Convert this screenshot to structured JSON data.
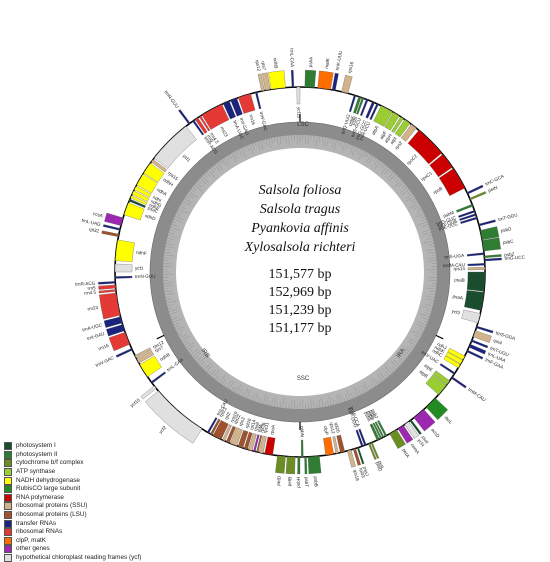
{
  "species": [
    "Salsola foliosa",
    "Salsola tragus",
    "Pyankovia affinis",
    "Xylosalsola richteri"
  ],
  "genome_sizes": [
    "151,577 bp",
    "152,969 bp",
    "151,239 bp",
    "151,177 bp"
  ],
  "regions": [
    "LSC",
    "IRA",
    "SSC",
    "IRB"
  ],
  "legend": [
    {
      "label": "photosystem I",
      "color": "#1a4d2e"
    },
    {
      "label": "photosystem II",
      "color": "#2e7d32"
    },
    {
      "label": "cytochrome b/f complex",
      "color": "#6b8e23"
    },
    {
      "label": "ATP synthase",
      "color": "#9acd32"
    },
    {
      "label": "NADH dehydrogenase",
      "color": "#ffff00"
    },
    {
      "label": "RubisCO large subunit",
      "color": "#228b22"
    },
    {
      "label": "RNA polymerase",
      "color": "#cc0000"
    },
    {
      "label": "ribosomal proteins (SSU)",
      "color": "#d2b48c"
    },
    {
      "label": "ribosomal proteins (LSU)",
      "color": "#a0522d"
    },
    {
      "label": "transfer RNAs",
      "color": "#1a237e"
    },
    {
      "label": "ribosomal RNAs",
      "color": "#e53935"
    },
    {
      "label": "clpP, matK",
      "color": "#ff6d00"
    },
    {
      "label": "other genes",
      "color": "#9c27b0"
    },
    {
      "label": "hypothetical chloroplast reading frames (ycf)",
      "color": "#e0e0e0"
    }
  ],
  "genes": [
    {
      "name": "psbA",
      "start": 1.5,
      "end": 4.5,
      "color": "#2e7d32",
      "side": "out"
    },
    {
      "name": "matK",
      "start": 5.5,
      "end": 9.5,
      "color": "#ff6d00",
      "side": "out"
    },
    {
      "name": "trnK-UUU",
      "start": 10,
      "end": 11,
      "color": "#1a237e",
      "side": "out"
    },
    {
      "name": "rps16",
      "start": 13,
      "end": 15,
      "color": "#d2b48c",
      "side": "out"
    },
    {
      "name": "trnQ-UUG",
      "start": 17,
      "end": 17.6,
      "color": "#1a237e",
      "side": "in"
    },
    {
      "name": "psbK",
      "start": 18.5,
      "end": 19.3,
      "color": "#2e7d32",
      "side": "in"
    },
    {
      "name": "psbI",
      "start": 19.6,
      "end": 20.2,
      "color": "#2e7d32",
      "side": "in"
    },
    {
      "name": "trnS-GCU",
      "start": 21,
      "end": 21.6,
      "color": "#1a237e",
      "side": "in"
    },
    {
      "name": "trnG-GCC",
      "start": 23,
      "end": 23.8,
      "color": "#1a237e",
      "side": "in"
    },
    {
      "name": "trnR-UCU",
      "start": 24.5,
      "end": 25.1,
      "color": "#1a237e",
      "side": "in"
    },
    {
      "name": "atpA",
      "start": 26,
      "end": 30,
      "color": "#9acd32",
      "side": "in"
    },
    {
      "name": "atpF",
      "start": 30.3,
      "end": 32.5,
      "color": "#9acd32",
      "side": "in"
    },
    {
      "name": "atpH",
      "start": 33,
      "end": 34,
      "color": "#9acd32",
      "side": "in"
    },
    {
      "name": "atpI",
      "start": 34.5,
      "end": 36.5,
      "color": "#9acd32",
      "side": "in"
    },
    {
      "name": "rps2",
      "start": 37,
      "end": 39,
      "color": "#d2b48c",
      "side": "in"
    },
    {
      "name": "rpoC2",
      "start": 40,
      "end": 50,
      "color": "#cc0000",
      "side": "in"
    },
    {
      "name": "rpoC1",
      "start": 50.5,
      "end": 55.5,
      "color": "#cc0000",
      "side": "in"
    },
    {
      "name": "rpoB",
      "start": 56,
      "end": 63,
      "color": "#cc0000",
      "side": "in"
    },
    {
      "name": "trnC-GCA",
      "start": 64.5,
      "end": 65.1,
      "color": "#1a237e",
      "side": "out"
    },
    {
      "name": "petN",
      "start": 66.5,
      "end": 67.1,
      "color": "#6b8e23",
      "side": "out"
    },
    {
      "name": "psbM",
      "start": 68.5,
      "end": 69.2,
      "color": "#2e7d32",
      "side": "in"
    },
    {
      "name": "trnD-GUC",
      "start": 70.5,
      "end": 71.1,
      "color": "#1a237e",
      "side": "in"
    },
    {
      "name": "trnY-GUA",
      "start": 71.6,
      "end": 72.2,
      "color": "#1a237e",
      "side": "in"
    },
    {
      "name": "trnE-UUC",
      "start": 72.7,
      "end": 73.3,
      "color": "#1a237e",
      "side": "in"
    },
    {
      "name": "trnT-GGU",
      "start": 75,
      "end": 75.6,
      "color": "#1a237e",
      "side": "out"
    },
    {
      "name": "psbD",
      "start": 77,
      "end": 80,
      "color": "#2e7d32",
      "side": "out"
    },
    {
      "name": "psbC",
      "start": 80.2,
      "end": 83.5,
      "color": "#2e7d32",
      "side": "out"
    },
    {
      "name": "trnS-UGA",
      "start": 84,
      "end": 84.6,
      "color": "#1a237e",
      "side": "in"
    },
    {
      "name": "psbZ",
      "start": 85,
      "end": 85.6,
      "color": "#2e7d32",
      "side": "out"
    },
    {
      "name": "trnG-UCC",
      "start": 86,
      "end": 86.6,
      "color": "#1a237e",
      "side": "out"
    },
    {
      "name": "trnfM-CAU",
      "start": 87.3,
      "end": 87.9,
      "color": "#1a237e",
      "side": "in"
    },
    {
      "name": "rps14",
      "start": 88.5,
      "end": 89.3,
      "color": "#d2b48c",
      "side": "in"
    },
    {
      "name": "psaB",
      "start": 90,
      "end": 96,
      "color": "#1a4d2e",
      "side": "in"
    },
    {
      "name": "psaA",
      "start": 96.3,
      "end": 102,
      "color": "#1a4d2e",
      "side": "in"
    },
    {
      "name": "ycf3",
      "start": 103,
      "end": 106,
      "color": "#e0e0e0",
      "side": "in"
    },
    {
      "name": "trnS-GGA",
      "start": 107,
      "end": 107.6,
      "color": "#1a237e",
      "side": "out"
    },
    {
      "name": "rps4",
      "start": 108.5,
      "end": 110.5,
      "color": "#d2b48c",
      "side": "out"
    },
    {
      "name": "trnT-UGU",
      "start": 111.5,
      "end": 112.1,
      "color": "#1a237e",
      "side": "out"
    },
    {
      "name": "trnL-UAA",
      "start": 113,
      "end": 114,
      "color": "#1a237e",
      "side": "out"
    },
    {
      "name": "trnF-GAA",
      "start": 115,
      "end": 115.6,
      "color": "#1a237e",
      "side": "out"
    },
    {
      "name": "ndhJ",
      "start": 117,
      "end": 118.3,
      "color": "#ffff00",
      "side": "in"
    },
    {
      "name": "ndhK",
      "start": 118.5,
      "end": 119.8,
      "color": "#ffff00",
      "side": "in"
    },
    {
      "name": "ndhC",
      "start": 120,
      "end": 121.2,
      "color": "#ffff00",
      "side": "in"
    },
    {
      "name": "trnV-UAC",
      "start": 123,
      "end": 123.6,
      "color": "#1a237e",
      "side": "in"
    },
    {
      "name": "trnM-CAU",
      "start": 124.5,
      "end": 125.1,
      "color": "#1a237e",
      "side": "out"
    },
    {
      "name": "atpE",
      "start": 126,
      "end": 127.5,
      "color": "#9acd32",
      "side": "in"
    },
    {
      "name": "atpB",
      "start": 127.7,
      "end": 131.5,
      "color": "#9acd32",
      "side": "in"
    },
    {
      "name": "rbcL",
      "start": 133,
      "end": 137,
      "color": "#228b22",
      "side": "out"
    },
    {
      "name": "accD",
      "start": 138,
      "end": 142,
      "color": "#9c27b0",
      "side": "out"
    },
    {
      "name": "psaI",
      "start": 143,
      "end": 143.6,
      "color": "#1a4d2e",
      "side": "out"
    },
    {
      "name": "ycf4",
      "start": 144,
      "end": 145.5,
      "color": "#e0e0e0",
      "side": "out"
    },
    {
      "name": "cemA",
      "start": 146,
      "end": 148,
      "color": "#9c27b0",
      "side": "out"
    },
    {
      "name": "petA",
      "start": 148.5,
      "end": 151,
      "color": "#6b8e23",
      "side": "out"
    },
    {
      "name": "psbJ",
      "start": 152,
      "end": 152.6,
      "color": "#2e7d32",
      "side": "in"
    },
    {
      "name": "psbL",
      "start": 153,
      "end": 153.5,
      "color": "#2e7d32",
      "side": "in"
    },
    {
      "name": "psbF",
      "start": 153.8,
      "end": 154.3,
      "color": "#2e7d32",
      "side": "in"
    },
    {
      "name": "psbE",
      "start": 154.6,
      "end": 155.4,
      "color": "#2e7d32",
      "side": "in"
    },
    {
      "name": "petL",
      "start": 157,
      "end": 157.5,
      "color": "#6b8e23",
      "side": "out"
    },
    {
      "name": "petG",
      "start": 157.8,
      "end": 158.3,
      "color": "#6b8e23",
      "side": "out"
    },
    {
      "name": "trnW-CCA",
      "start": 159,
      "end": 159.6,
      "color": "#1a237e",
      "side": "in"
    },
    {
      "name": "trnP-UGG",
      "start": 160,
      "end": 160.6,
      "color": "#1a237e",
      "side": "in"
    },
    {
      "name": "psaJ",
      "start": 161.5,
      "end": 162,
      "color": "#1a4d2e",
      "side": "out"
    },
    {
      "name": "rpl33",
      "start": 162.5,
      "end": 163.3,
      "color": "#a0522d",
      "side": "out"
    },
    {
      "name": "rps18",
      "start": 164,
      "end": 165.2,
      "color": "#d2b48c",
      "side": "out"
    },
    {
      "name": "rpl20",
      "start": 166,
      "end": 167.4,
      "color": "#a0522d",
      "side": "in"
    },
    {
      "name": "rps12",
      "start": 168,
      "end": 168.8,
      "color": "#d2b48c",
      "side": "in"
    },
    {
      "name": "clpP",
      "start": 169.5,
      "end": 172,
      "color": "#ff6d00",
      "side": "in"
    },
    {
      "name": "psbB",
      "start": 174,
      "end": 177.5,
      "color": "#2e7d32",
      "side": "out"
    },
    {
      "name": "psbT",
      "start": 178,
      "end": 178.6,
      "color": "#2e7d32",
      "side": "out"
    },
    {
      "name": "psbN",
      "start": 179,
      "end": 179.6,
      "color": "#2e7d32",
      "side": "in"
    },
    {
      "name": "psbH",
      "start": 180,
      "end": 180.7,
      "color": "#2e7d32",
      "side": "out"
    },
    {
      "name": "petB",
      "start": 181.5,
      "end": 184,
      "color": "#6b8e23",
      "side": "out"
    },
    {
      "name": "petD",
      "start": 184.5,
      "end": 187,
      "color": "#6b8e23",
      "side": "out"
    },
    {
      "name": "rpoA",
      "start": 188.5,
      "end": 191,
      "color": "#cc0000",
      "side": "in"
    },
    {
      "name": "rps11",
      "start": 191.5,
      "end": 192.8,
      "color": "#d2b48c",
      "side": "in"
    },
    {
      "name": "rpl36",
      "start": 193.1,
      "end": 193.6,
      "color": "#a0522d",
      "side": "in"
    },
    {
      "name": "infA",
      "start": 194,
      "end": 194.6,
      "color": "#9c27b0",
      "side": "in"
    },
    {
      "name": "rps8",
      "start": 195,
      "end": 196.2,
      "color": "#d2b48c",
      "side": "in"
    },
    {
      "name": "rpl14",
      "start": 196.5,
      "end": 197.6,
      "color": "#a0522d",
      "side": "in"
    },
    {
      "name": "rpl16",
      "start": 198,
      "end": 199.6,
      "color": "#a0522d",
      "side": "in"
    },
    {
      "name": "rps3",
      "start": 200,
      "end": 202.2,
      "color": "#d2b48c",
      "side": "in"
    },
    {
      "name": "rpl22",
      "start": 202.5,
      "end": 203.5,
      "color": "#a0522d",
      "side": "in"
    },
    {
      "name": "rps19",
      "start": 204,
      "end": 204.8,
      "color": "#d2b48c",
      "side": "in"
    },
    {
      "name": "rpl2",
      "start": 205.2,
      "end": 208,
      "color": "#a0522d",
      "side": "in"
    },
    {
      "name": "rpl23",
      "start": 208.3,
      "end": 209,
      "color": "#a0522d",
      "side": "in"
    },
    {
      "name": "trnI-CAU",
      "start": 209.5,
      "end": 210.1,
      "color": "#1a237e",
      "side": "in"
    },
    {
      "name": "ycf2",
      "start": 212,
      "end": 230,
      "color": "#e0e0e0",
      "side": "out"
    },
    {
      "name": "ycf15",
      "start": 231,
      "end": 232,
      "color": "#e0e0e0",
      "side": "out"
    },
    {
      "name": "trnL-CAA",
      "start": 233,
      "end": 233.6,
      "color": "#1a237e",
      "side": "in"
    },
    {
      "name": "ndhB",
      "start": 235.5,
      "end": 240,
      "color": "#ffff00",
      "side": "in"
    },
    {
      "name": "rps7",
      "start": 240.5,
      "end": 242,
      "color": "#d2b48c",
      "side": "in"
    },
    {
      "name": "rps12",
      "start": 242.3,
      "end": 243.2,
      "color": "#d2b48c",
      "side": "in"
    },
    {
      "name": "trnV-GAC",
      "start": 245,
      "end": 245.6,
      "color": "#1a237e",
      "side": "out"
    },
    {
      "name": "rrn16",
      "start": 247,
      "end": 251,
      "color": "#e53935",
      "side": "out"
    },
    {
      "name": "trnI-GAU",
      "start": 251.5,
      "end": 253.5,
      "color": "#1a237e",
      "side": "out"
    },
    {
      "name": "trnA-UGC",
      "start": 254,
      "end": 256,
      "color": "#1a237e",
      "side": "out"
    },
    {
      "name": "rrn23",
      "start": 256.5,
      "end": 263.5,
      "color": "#e53935",
      "side": "out"
    },
    {
      "name": "rrn4.5",
      "start": 264,
      "end": 264.6,
      "color": "#e53935",
      "side": "out"
    },
    {
      "name": "rrn5",
      "start": 265,
      "end": 266,
      "color": "#e53935",
      "side": "out"
    },
    {
      "name": "trnR-ACG",
      "start": 266.5,
      "end": 267.1,
      "color": "#1a237e",
      "side": "out"
    },
    {
      "name": "trnN-GUU",
      "start": 268,
      "end": 268.6,
      "color": "#1a237e",
      "side": "in"
    },
    {
      "name": "ycf1",
      "start": 270,
      "end": 272.5,
      "color": "#e0e0e0",
      "side": "in"
    },
    {
      "name": "ndhF",
      "start": 273.5,
      "end": 280,
      "color": "#ffff00",
      "side": "in"
    },
    {
      "name": "rpl32",
      "start": 281,
      "end": 281.8,
      "color": "#a0522d",
      "side": "out"
    },
    {
      "name": "trnL-UAG",
      "start": 283,
      "end": 283.6,
      "color": "#1a237e",
      "side": "out"
    },
    {
      "name": "ccsA",
      "start": 284.5,
      "end": 287,
      "color": "#9c27b0",
      "side": "out"
    },
    {
      "name": "ndhD",
      "start": 288,
      "end": 292,
      "color": "#ffff00",
      "side": "in"
    },
    {
      "name": "psaC",
      "start": 292.5,
      "end": 293.2,
      "color": "#1a4d2e",
      "side": "in"
    },
    {
      "name": "ndhE",
      "start": 293.6,
      "end": 294.4,
      "color": "#ffff00",
      "side": "in"
    },
    {
      "name": "ndhG",
      "start": 294.8,
      "end": 296,
      "color": "#ffff00",
      "side": "in"
    },
    {
      "name": "ndhI",
      "start": 296.4,
      "end": 297.6,
      "color": "#ffff00",
      "side": "in"
    },
    {
      "name": "ndhA",
      "start": 298,
      "end": 302,
      "color": "#ffff00",
      "side": "in"
    },
    {
      "name": "ndhH",
      "start": 302.3,
      "end": 306,
      "color": "#ffff00",
      "side": "in"
    },
    {
      "name": "rps15",
      "start": 306.5,
      "end": 307.5,
      "color": "#d2b48c",
      "side": "in"
    },
    {
      "name": "ycf1",
      "start": 308,
      "end": 322,
      "color": "#e0e0e0",
      "side": "in"
    },
    {
      "name": "trnN-GUU",
      "start": 323,
      "end": 323.6,
      "color": "#1a237e",
      "side": "out"
    },
    {
      "name": "trnR-ACG",
      "start": 324.5,
      "end": 325.1,
      "color": "#1a237e",
      "side": "in"
    },
    {
      "name": "rrn5",
      "start": 325.5,
      "end": 326.5,
      "color": "#e53935",
      "side": "in"
    },
    {
      "name": "rrn4.5",
      "start": 327,
      "end": 327.6,
      "color": "#e53935",
      "side": "in"
    },
    {
      "name": "rrn23",
      "start": 328,
      "end": 335,
      "color": "#e53935",
      "side": "in"
    },
    {
      "name": "trnA-UGC",
      "start": 335.5,
      "end": 337.5,
      "color": "#1a237e",
      "side": "in"
    },
    {
      "name": "trnI-GAU",
      "start": 338,
      "end": 340,
      "color": "#1a237e",
      "side": "in"
    },
    {
      "name": "rrn16",
      "start": 340.5,
      "end": 344.5,
      "color": "#e53935",
      "side": "in"
    },
    {
      "name": "trnV-GAC",
      "start": 346,
      "end": 346.6,
      "color": "#1a237e",
      "side": "in"
    },
    {
      "name": "rps12",
      "start": 348,
      "end": 348.9,
      "color": "#d2b48c",
      "side": "out"
    },
    {
      "name": "rps7",
      "start": 349.2,
      "end": 350.7,
      "color": "#d2b48c",
      "side": "out"
    },
    {
      "name": "ndhB",
      "start": 351,
      "end": 355.5,
      "color": "#ffff00",
      "side": "out"
    },
    {
      "name": "trnL-CAA",
      "start": 357.5,
      "end": 358.1,
      "color": "#1a237e",
      "side": "out"
    },
    {
      "name": "ycf15",
      "start": 359,
      "end": 360,
      "color": "#e0e0e0",
      "side": "in"
    }
  ]
}
